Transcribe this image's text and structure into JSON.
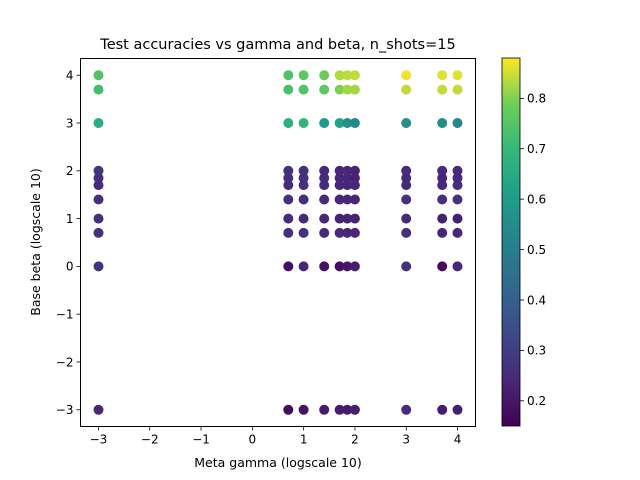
{
  "chart_data": {
    "type": "scatter",
    "title": "Test accuracies vs gamma and beta, n_shots=15",
    "xlabel": "Meta gamma (logscale 10)",
    "ylabel": "Base beta (logscale 10)",
    "xlim": [
      -3.35,
      4.35
    ],
    "ylim": [
      -3.35,
      4.35
    ],
    "xticks": [
      -3,
      -2,
      -1,
      0,
      1,
      2,
      3,
      4
    ],
    "yticks": [
      -3,
      -2,
      -1,
      0,
      1,
      2,
      3,
      4
    ],
    "xtick_labels": [
      "−3",
      "−2",
      "−1",
      "0",
      "1",
      "2",
      "3",
      "4"
    ],
    "ytick_labels": [
      "−3",
      "−2",
      "−1",
      "0",
      "1",
      "2",
      "3",
      "4"
    ],
    "grid": false,
    "colorbar": {
      "colormap": "viridis",
      "range": [
        0.15,
        0.88
      ],
      "ticks": [
        0.2,
        0.3,
        0.4,
        0.5,
        0.6,
        0.7,
        0.8
      ],
      "tick_labels": [
        "0.2",
        "0.3",
        "0.4",
        "0.5",
        "0.6",
        "0.7",
        "0.8"
      ]
    },
    "points": [
      {
        "x": -3,
        "y": 4,
        "c": 0.74
      },
      {
        "x": -3,
        "y": 3.7,
        "c": 0.72
      },
      {
        "x": -3,
        "y": 3,
        "c": 0.66
      },
      {
        "x": -3,
        "y": 2,
        "c": 0.28
      },
      {
        "x": -3,
        "y": 1.85,
        "c": 0.26
      },
      {
        "x": -3,
        "y": 1.7,
        "c": 0.25
      },
      {
        "x": -3,
        "y": 1.4,
        "c": 0.26
      },
      {
        "x": -3,
        "y": 1,
        "c": 0.26
      },
      {
        "x": -3,
        "y": 0.7,
        "c": 0.26
      },
      {
        "x": -3,
        "y": 0,
        "c": 0.27
      },
      {
        "x": -3,
        "y": -3,
        "c": 0.24
      },
      {
        "x": 0.7,
        "y": 4,
        "c": 0.74
      },
      {
        "x": 0.7,
        "y": 3.7,
        "c": 0.73
      },
      {
        "x": 0.7,
        "y": 3,
        "c": 0.67
      },
      {
        "x": 0.7,
        "y": 2,
        "c": 0.27
      },
      {
        "x": 0.7,
        "y": 1.85,
        "c": 0.26
      },
      {
        "x": 0.7,
        "y": 1.7,
        "c": 0.25
      },
      {
        "x": 0.7,
        "y": 1.4,
        "c": 0.26
      },
      {
        "x": 0.7,
        "y": 1,
        "c": 0.25
      },
      {
        "x": 0.7,
        "y": 0.7,
        "c": 0.26
      },
      {
        "x": 0.7,
        "y": 0,
        "c": 0.18
      },
      {
        "x": 0.7,
        "y": -3,
        "c": 0.17
      },
      {
        "x": 1,
        "y": 4,
        "c": 0.76
      },
      {
        "x": 1,
        "y": 3.7,
        "c": 0.74
      },
      {
        "x": 1,
        "y": 3,
        "c": 0.69
      },
      {
        "x": 1,
        "y": 2,
        "c": 0.27
      },
      {
        "x": 1,
        "y": 1.85,
        "c": 0.27
      },
      {
        "x": 1,
        "y": 1.7,
        "c": 0.26
      },
      {
        "x": 1,
        "y": 1.4,
        "c": 0.26
      },
      {
        "x": 1,
        "y": 1,
        "c": 0.25
      },
      {
        "x": 1,
        "y": 0.7,
        "c": 0.26
      },
      {
        "x": 1,
        "y": 0,
        "c": 0.24
      },
      {
        "x": 1,
        "y": -3,
        "c": 0.19
      },
      {
        "x": 1.4,
        "y": 4,
        "c": 0.78
      },
      {
        "x": 1.4,
        "y": 3.7,
        "c": 0.76
      },
      {
        "x": 1.4,
        "y": 3,
        "c": 0.6
      },
      {
        "x": 1.4,
        "y": 2,
        "c": 0.25
      },
      {
        "x": 1.4,
        "y": 1.85,
        "c": 0.25
      },
      {
        "x": 1.4,
        "y": 1.7,
        "c": 0.25
      },
      {
        "x": 1.4,
        "y": 1.4,
        "c": 0.25
      },
      {
        "x": 1.4,
        "y": 1,
        "c": 0.24
      },
      {
        "x": 1.4,
        "y": 0.7,
        "c": 0.25
      },
      {
        "x": 1.4,
        "y": 0,
        "c": 0.19
      },
      {
        "x": 1.4,
        "y": -3,
        "c": 0.21
      },
      {
        "x": 1.7,
        "y": 4,
        "c": 0.83
      },
      {
        "x": 1.7,
        "y": 3.7,
        "c": 0.8
      },
      {
        "x": 1.7,
        "y": 3,
        "c": 0.62
      },
      {
        "x": 1.7,
        "y": 2,
        "c": 0.24
      },
      {
        "x": 1.7,
        "y": 1.85,
        "c": 0.24
      },
      {
        "x": 1.7,
        "y": 1.7,
        "c": 0.24
      },
      {
        "x": 1.7,
        "y": 1.4,
        "c": 0.24
      },
      {
        "x": 1.7,
        "y": 1,
        "c": 0.23
      },
      {
        "x": 1.7,
        "y": 0.7,
        "c": 0.25
      },
      {
        "x": 1.7,
        "y": 0,
        "c": 0.18
      },
      {
        "x": 1.7,
        "y": -3,
        "c": 0.21
      },
      {
        "x": 1.85,
        "y": 4,
        "c": 0.84
      },
      {
        "x": 1.85,
        "y": 3.7,
        "c": 0.82
      },
      {
        "x": 1.85,
        "y": 3,
        "c": 0.56
      },
      {
        "x": 1.85,
        "y": 2,
        "c": 0.24
      },
      {
        "x": 1.85,
        "y": 1.85,
        "c": 0.24
      },
      {
        "x": 1.85,
        "y": 1.7,
        "c": 0.24
      },
      {
        "x": 1.85,
        "y": 1.4,
        "c": 0.24
      },
      {
        "x": 1.85,
        "y": 1,
        "c": 0.23
      },
      {
        "x": 1.85,
        "y": 0.7,
        "c": 0.24
      },
      {
        "x": 1.85,
        "y": 0,
        "c": 0.2
      },
      {
        "x": 1.85,
        "y": -3,
        "c": 0.21
      },
      {
        "x": 2,
        "y": 4,
        "c": 0.84
      },
      {
        "x": 2,
        "y": 3.7,
        "c": 0.82
      },
      {
        "x": 2,
        "y": 3,
        "c": 0.54
      },
      {
        "x": 2,
        "y": 2,
        "c": 0.23
      },
      {
        "x": 2,
        "y": 1.85,
        "c": 0.23
      },
      {
        "x": 2,
        "y": 1.7,
        "c": 0.24
      },
      {
        "x": 2,
        "y": 1.4,
        "c": 0.24
      },
      {
        "x": 2,
        "y": 1,
        "c": 0.23
      },
      {
        "x": 2,
        "y": 0.7,
        "c": 0.24
      },
      {
        "x": 2,
        "y": 0,
        "c": 0.22
      },
      {
        "x": 2,
        "y": -3,
        "c": 0.22
      },
      {
        "x": 3,
        "y": 4,
        "c": 0.87
      },
      {
        "x": 3,
        "y": 3.7,
        "c": 0.84
      },
      {
        "x": 3,
        "y": 3,
        "c": 0.56
      },
      {
        "x": 3,
        "y": 2,
        "c": 0.25
      },
      {
        "x": 3,
        "y": 1.85,
        "c": 0.25
      },
      {
        "x": 3,
        "y": 1.7,
        "c": 0.25
      },
      {
        "x": 3,
        "y": 1.4,
        "c": 0.26
      },
      {
        "x": 3,
        "y": 1,
        "c": 0.25
      },
      {
        "x": 3,
        "y": 0.7,
        "c": 0.26
      },
      {
        "x": 3,
        "y": 0,
        "c": 0.26
      },
      {
        "x": 3,
        "y": -3,
        "c": 0.25
      },
      {
        "x": 3.7,
        "y": 4,
        "c": 0.86
      },
      {
        "x": 3.7,
        "y": 3.7,
        "c": 0.84
      },
      {
        "x": 3.7,
        "y": 3,
        "c": 0.55
      },
      {
        "x": 3.7,
        "y": 2,
        "c": 0.25
      },
      {
        "x": 3.7,
        "y": 1.85,
        "c": 0.24
      },
      {
        "x": 3.7,
        "y": 1.7,
        "c": 0.25
      },
      {
        "x": 3.7,
        "y": 1.4,
        "c": 0.26
      },
      {
        "x": 3.7,
        "y": 1,
        "c": 0.22
      },
      {
        "x": 3.7,
        "y": 0.7,
        "c": 0.24
      },
      {
        "x": 3.7,
        "y": 0,
        "c": 0.17
      },
      {
        "x": 3.7,
        "y": -3,
        "c": 0.21
      },
      {
        "x": 4,
        "y": 4,
        "c": 0.86
      },
      {
        "x": 4,
        "y": 3.7,
        "c": 0.84
      },
      {
        "x": 4,
        "y": 3,
        "c": 0.52
      },
      {
        "x": 4,
        "y": 2,
        "c": 0.25
      },
      {
        "x": 4,
        "y": 1.85,
        "c": 0.25
      },
      {
        "x": 4,
        "y": 1.7,
        "c": 0.26
      },
      {
        "x": 4,
        "y": 1.4,
        "c": 0.27
      },
      {
        "x": 4,
        "y": 1,
        "c": 0.22
      },
      {
        "x": 4,
        "y": 0.7,
        "c": 0.24
      },
      {
        "x": 4,
        "y": 0,
        "c": 0.24
      },
      {
        "x": 4,
        "y": -3,
        "c": 0.22
      }
    ]
  }
}
